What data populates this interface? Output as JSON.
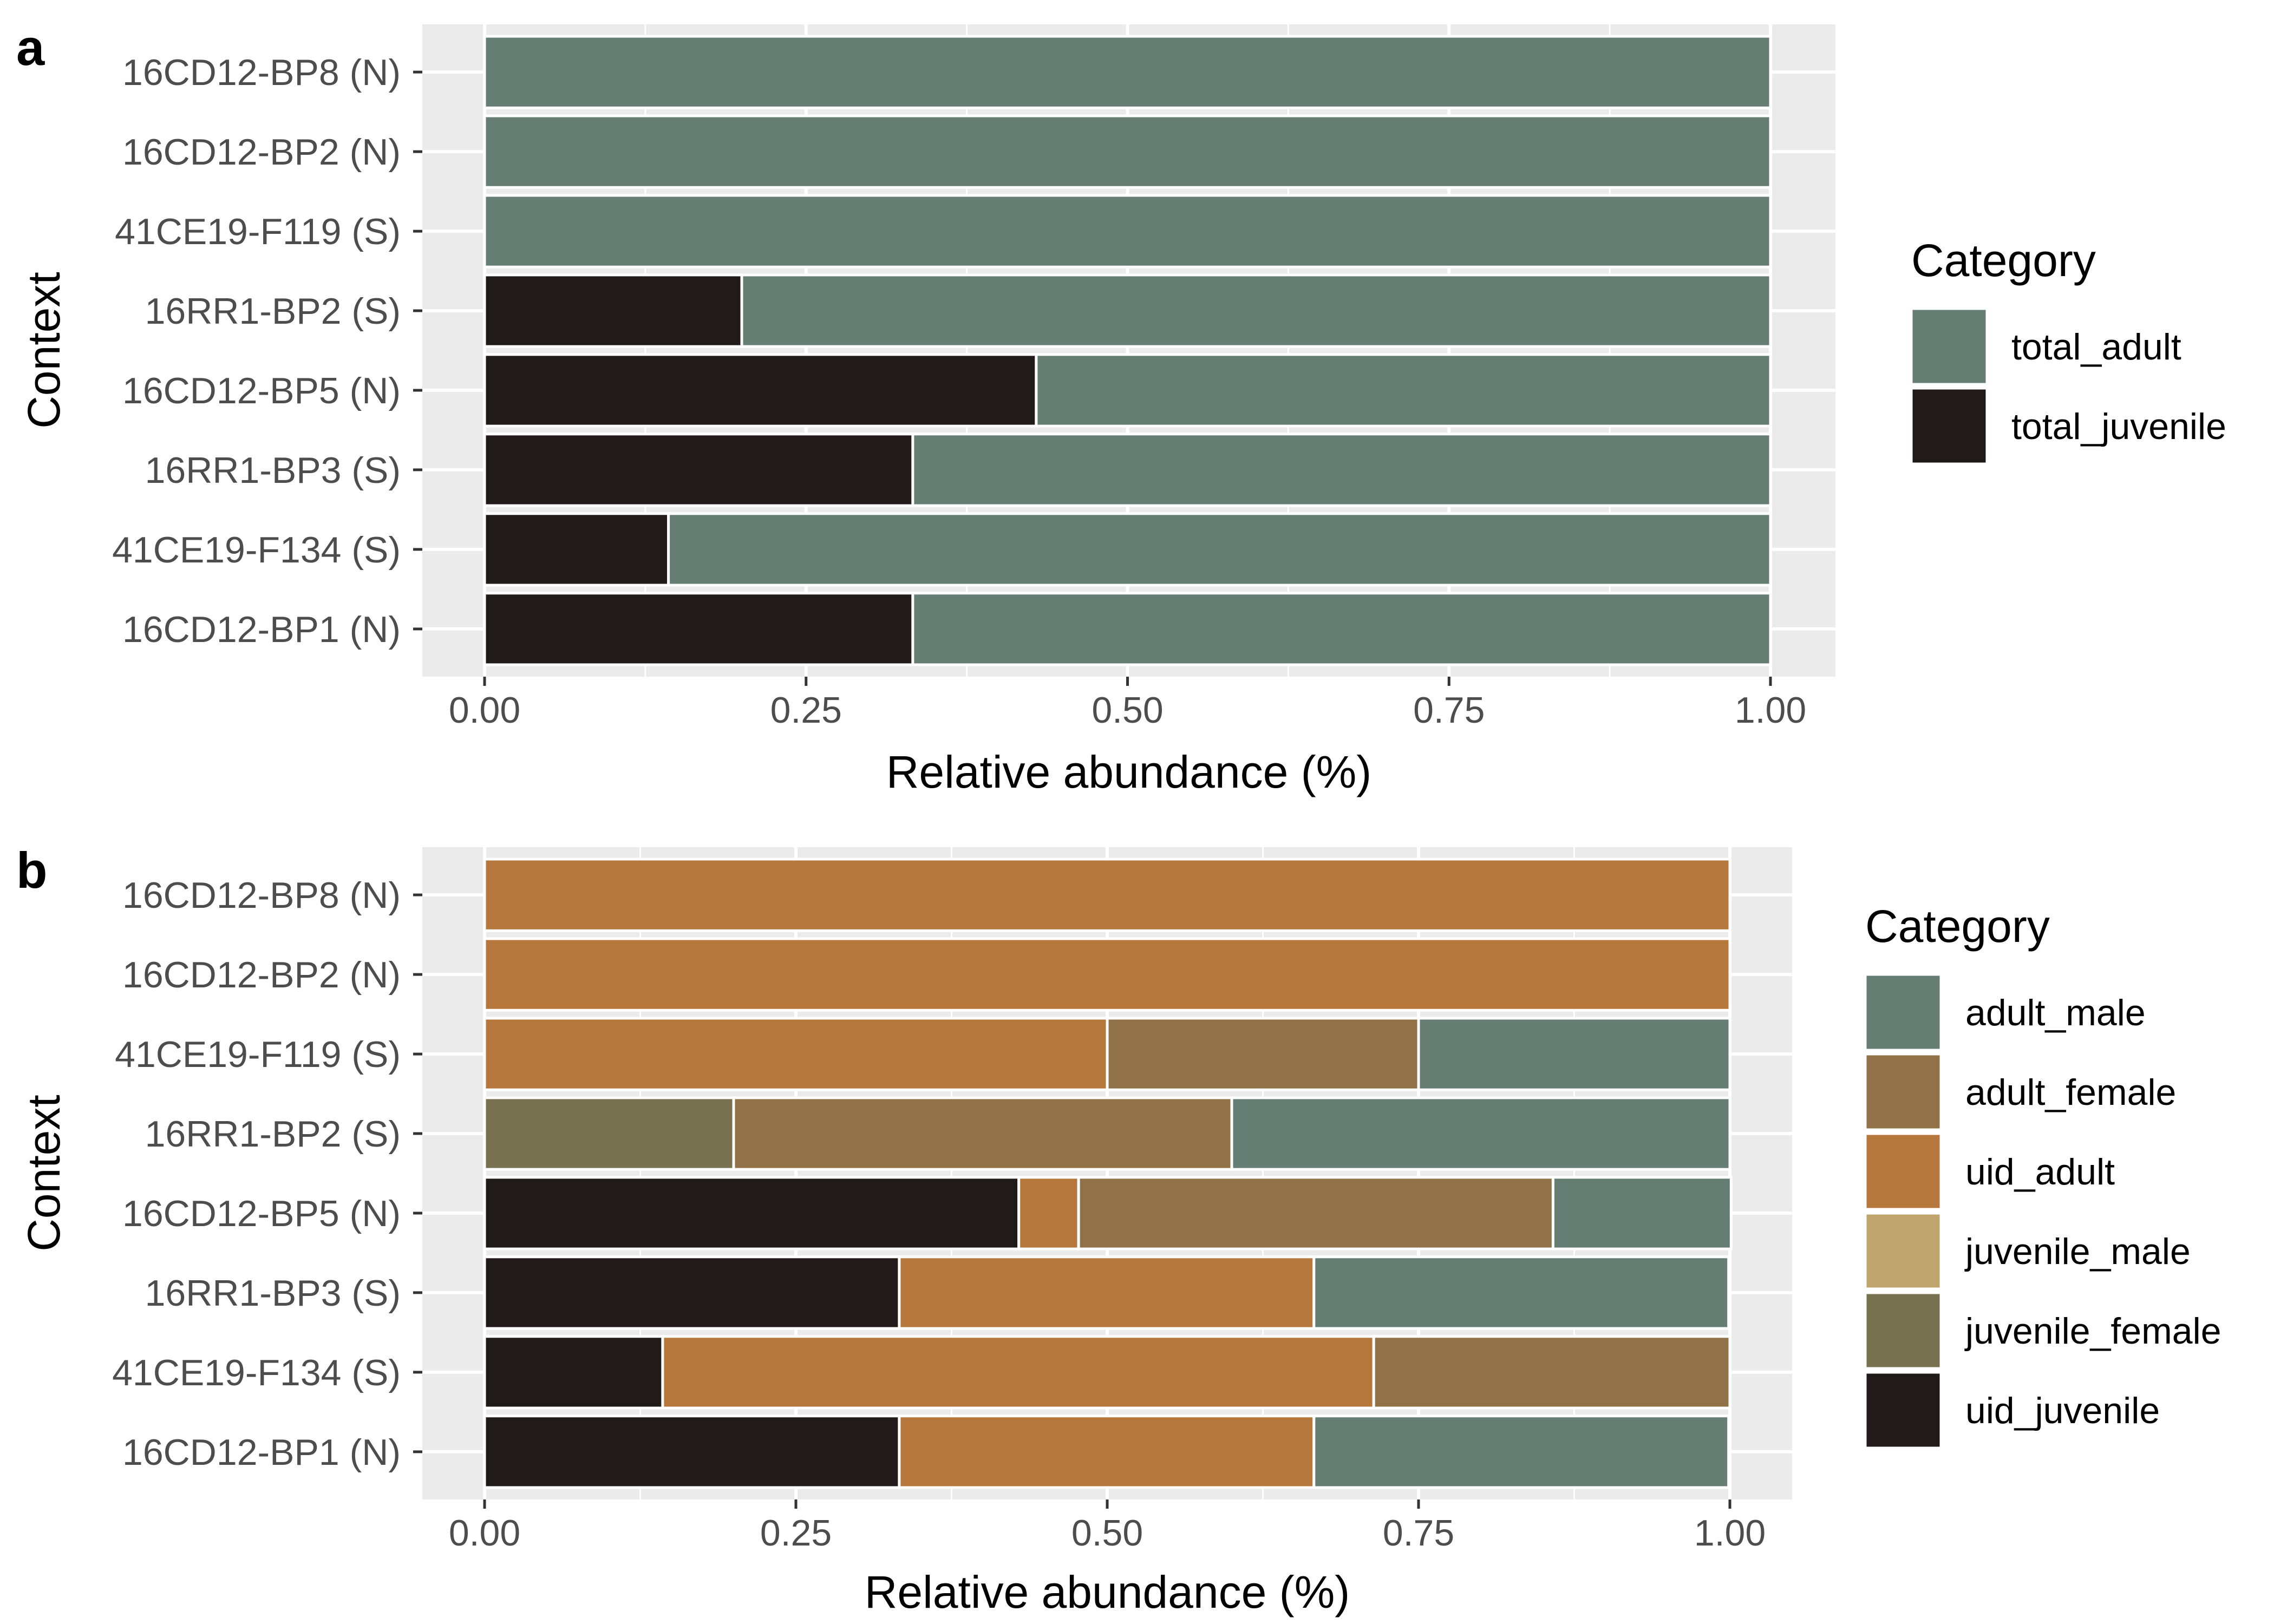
{
  "panels": [
    {
      "letter": "a",
      "legend_title": "Category",
      "chart_data": {
        "type": "bar",
        "orientation": "horizontal",
        "stacked": true,
        "xlabel": "Relative abundance (%)",
        "ylabel": "Context",
        "xlim": [
          0,
          1
        ],
        "xticks": [
          "0.00",
          "0.25",
          "0.50",
          "0.75",
          "1.00"
        ],
        "grid": true,
        "legend_position": "right",
        "categories": [
          "16CD12-BP8 (N)",
          "16CD12-BP2 (N)",
          "41CE19-F119 (S)",
          "16RR1-BP2 (S)",
          "16CD12-BP5 (N)",
          "16RR1-BP3 (S)",
          "41CE19-F134 (S)",
          "16CD12-BP1 (N)"
        ],
        "series": [
          {
            "name": "total_adult",
            "color": "#667d74",
            "values": [
              1.0,
              1.0,
              1.0,
              0.8,
              0.571,
              0.667,
              0.857,
              0.667
            ]
          },
          {
            "name": "total_juvenile",
            "color": "#201b19",
            "values": [
              0.0,
              0.0,
              0.0,
              0.2,
              0.429,
              0.333,
              0.143,
              0.333
            ]
          }
        ],
        "stack_order": [
          "total_juvenile",
          "total_adult"
        ]
      }
    },
    {
      "letter": "b",
      "legend_title": "Category",
      "chart_data": {
        "type": "bar",
        "orientation": "horizontal",
        "stacked": true,
        "xlabel": "Relative abundance (%)",
        "ylabel": "Context",
        "xlim": [
          0,
          1
        ],
        "xticks": [
          "0.00",
          "0.25",
          "0.50",
          "0.75",
          "1.00"
        ],
        "grid": true,
        "legend_position": "right",
        "categories": [
          "16CD12-BP8 (N)",
          "16CD12-BP2 (N)",
          "41CE19-F119 (S)",
          "16RR1-BP2 (S)",
          "16CD12-BP5 (N)",
          "16RR1-BP3 (S)",
          "41CE19-F134 (S)",
          "16CD12-BP1 (N)"
        ],
        "series": [
          {
            "name": "adult_male",
            "color": "#667d74",
            "values": [
              0.0,
              0.0,
              0.25,
              0.4,
              0.143,
              0.333,
              0.0,
              0.333
            ]
          },
          {
            "name": "adult_female",
            "color": "#917148",
            "values": [
              0.0,
              0.0,
              0.25,
              0.4,
              0.381,
              0.0,
              0.286,
              0.0
            ]
          },
          {
            "name": "uid_adult",
            "color": "#b5773b",
            "values": [
              1.0,
              1.0,
              0.5,
              0.0,
              0.048,
              0.333,
              0.571,
              0.333
            ]
          },
          {
            "name": "juvenile_male",
            "color": "#c0a66e",
            "values": [
              0.0,
              0.0,
              0.0,
              0.0,
              0.0,
              0.0,
              0.0,
              0.0
            ]
          },
          {
            "name": "juvenile_female",
            "color": "#78714f",
            "values": [
              0.0,
              0.0,
              0.0,
              0.2,
              0.0,
              0.0,
              0.0,
              0.0
            ]
          },
          {
            "name": "uid_juvenile",
            "color": "#201b19",
            "values": [
              0.0,
              0.0,
              0.0,
              0.0,
              0.429,
              0.333,
              0.143,
              0.333
            ]
          }
        ],
        "stack_order": [
          "uid_juvenile",
          "juvenile_female",
          "juvenile_male",
          "uid_adult",
          "adult_female",
          "adult_male"
        ]
      }
    }
  ]
}
